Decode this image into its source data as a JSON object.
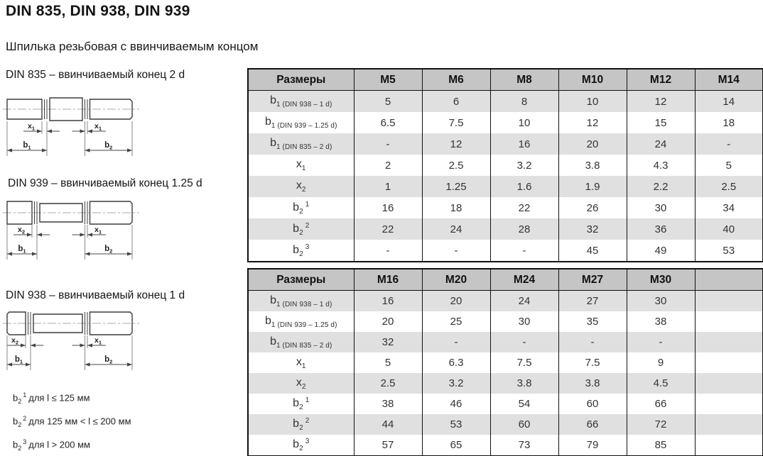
{
  "page": {
    "title": "DIN 835, DIN 938, DIN 939",
    "subtitle": "Шпилька резьбовая с ввинчиваемым концом"
  },
  "colors": {
    "table_header_bg": "#c5c5c5",
    "table_stripe_bg": "#e0e0e0",
    "table_border": "#111111",
    "drawing_line": "#3c3c3c"
  },
  "drawings": [
    {
      "caption": "DIN 835 – ввинчиваемый конец 2 d",
      "x_left": {
        "base": "x",
        "sub": "1"
      },
      "x_right": {
        "base": "x",
        "sub": "1"
      },
      "b_left": {
        "base": "b",
        "sub": "1"
      },
      "b_right": {
        "base": "b",
        "sub": "2"
      }
    },
    {
      "caption": "DIN 939 – ввинчиваемый конец 1.25 d",
      "x_left": {
        "base": "x",
        "sub": "2"
      },
      "x_right": {
        "base": "x",
        "sub": "1"
      },
      "b_left": {
        "base": "b",
        "sub": "1"
      },
      "b_right": {
        "base": "b",
        "sub": "2"
      }
    },
    {
      "caption": "DIN 938 – ввинчиваемый конец 1 d",
      "x_left": {
        "base": "x",
        "sub": "2"
      },
      "x_right": {
        "base": "x",
        "sub": "1"
      },
      "b_left": {
        "base": "b",
        "sub": "1"
      },
      "b_right": {
        "base": "b",
        "sub": "2"
      }
    }
  ],
  "footnotes": [
    {
      "base": "b",
      "sub": "2",
      "sup": "1",
      "text": "для l ≤ 125 мм"
    },
    {
      "base": "b",
      "sub": "2",
      "sup": "2",
      "text": "для 125 мм < l ≤ 200 мм"
    },
    {
      "base": "b",
      "sub": "2",
      "sup": "3",
      "text": "для l > 200 мм"
    }
  ],
  "tables": [
    {
      "headers": [
        "Размеры",
        "M5",
        "M6",
        "M8",
        "M10",
        "M12",
        "M14"
      ],
      "rows": [
        {
          "label": {
            "base": "b",
            "sub": "1 (DIN 938 – 1 d)"
          },
          "cells": [
            "5",
            "6",
            "8",
            "10",
            "12",
            "14"
          ]
        },
        {
          "label": {
            "base": "b",
            "sub": "1 (DIN 939 – 1.25 d)"
          },
          "cells": [
            "6.5",
            "7.5",
            "10",
            "12",
            "15",
            "18"
          ]
        },
        {
          "label": {
            "base": "b",
            "sub": "1 (DIN 835 – 2 d)"
          },
          "cells": [
            "-",
            "12",
            "16",
            "20",
            "24",
            "-"
          ]
        },
        {
          "label": {
            "base": "x",
            "sub": "1"
          },
          "cells": [
            "2",
            "2.5",
            "3.2",
            "3.8",
            "4.3",
            "5"
          ]
        },
        {
          "label": {
            "base": "x",
            "sub": "2"
          },
          "cells": [
            "1",
            "1.25",
            "1.6",
            "1.9",
            "2.2",
            "2.5"
          ]
        },
        {
          "label": {
            "base": "b",
            "sub": "2",
            "sup": "1"
          },
          "cells": [
            "16",
            "18",
            "22",
            "26",
            "30",
            "34"
          ]
        },
        {
          "label": {
            "base": "b",
            "sub": "2",
            "sup": "2"
          },
          "cells": [
            "22",
            "24",
            "28",
            "32",
            "36",
            "40"
          ]
        },
        {
          "label": {
            "base": "b",
            "sub": "2",
            "sup": "3"
          },
          "cells": [
            "-",
            "-",
            "-",
            "45",
            "49",
            "53"
          ]
        }
      ]
    },
    {
      "headers": [
        "Размеры",
        "M16",
        "M20",
        "M24",
        "M27",
        "M30",
        ""
      ],
      "rows": [
        {
          "label": {
            "base": "b",
            "sub": "1 (DIN 938 – 1 d)"
          },
          "cells": [
            "16",
            "20",
            "24",
            "27",
            "30",
            ""
          ]
        },
        {
          "label": {
            "base": "b",
            "sub": "1 (DIN 939 – 1.25 d)"
          },
          "cells": [
            "20",
            "25",
            "30",
            "35",
            "38",
            ""
          ]
        },
        {
          "label": {
            "base": "b",
            "sub": "1 (DIN 835 – 2 d)"
          },
          "cells": [
            "32",
            "-",
            "-",
            "-",
            "-",
            ""
          ]
        },
        {
          "label": {
            "base": "x",
            "sub": "1"
          },
          "cells": [
            "5",
            "6.3",
            "7.5",
            "7.5",
            "9",
            ""
          ]
        },
        {
          "label": {
            "base": "x",
            "sub": "2"
          },
          "cells": [
            "2.5",
            "3.2",
            "3.8",
            "3.8",
            "4.5",
            ""
          ]
        },
        {
          "label": {
            "base": "b",
            "sub": "2",
            "sup": "1"
          },
          "cells": [
            "38",
            "46",
            "54",
            "60",
            "66",
            ""
          ]
        },
        {
          "label": {
            "base": "b",
            "sub": "2",
            "sup": "2"
          },
          "cells": [
            "44",
            "53",
            "60",
            "66",
            "72",
            ""
          ]
        },
        {
          "label": {
            "base": "b",
            "sub": "2",
            "sup": "3"
          },
          "cells": [
            "57",
            "65",
            "73",
            "79",
            "85",
            ""
          ]
        }
      ]
    }
  ]
}
